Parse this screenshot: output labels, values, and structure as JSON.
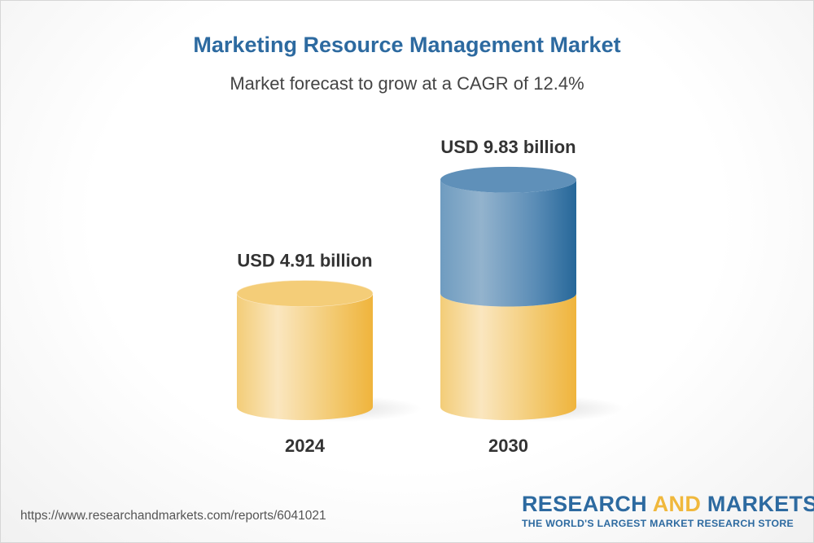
{
  "chart_data": {
    "type": "bar",
    "style": "3d-cylinder",
    "title": "Marketing Resource Management Market",
    "subtitle": "Market forecast to grow at a CAGR of 12.4%",
    "categories": [
      "2024",
      "2030"
    ],
    "values": [
      4.91,
      9.83
    ],
    "data_labels": [
      "USD 4.91 billion",
      "USD 9.83 billion"
    ],
    "unit": "USD billion",
    "colors": {
      "base": "#f0b840",
      "growth": "#2a6a9e"
    }
  },
  "footer": {
    "url": "https://www.researchandmarkets.com/reports/6041021",
    "logo": {
      "part1": "RESEARCH ",
      "part2": "AND",
      "part3": " MARKETS",
      "tagline": "THE WORLD'S LARGEST MARKET RESEARCH STORE"
    }
  }
}
